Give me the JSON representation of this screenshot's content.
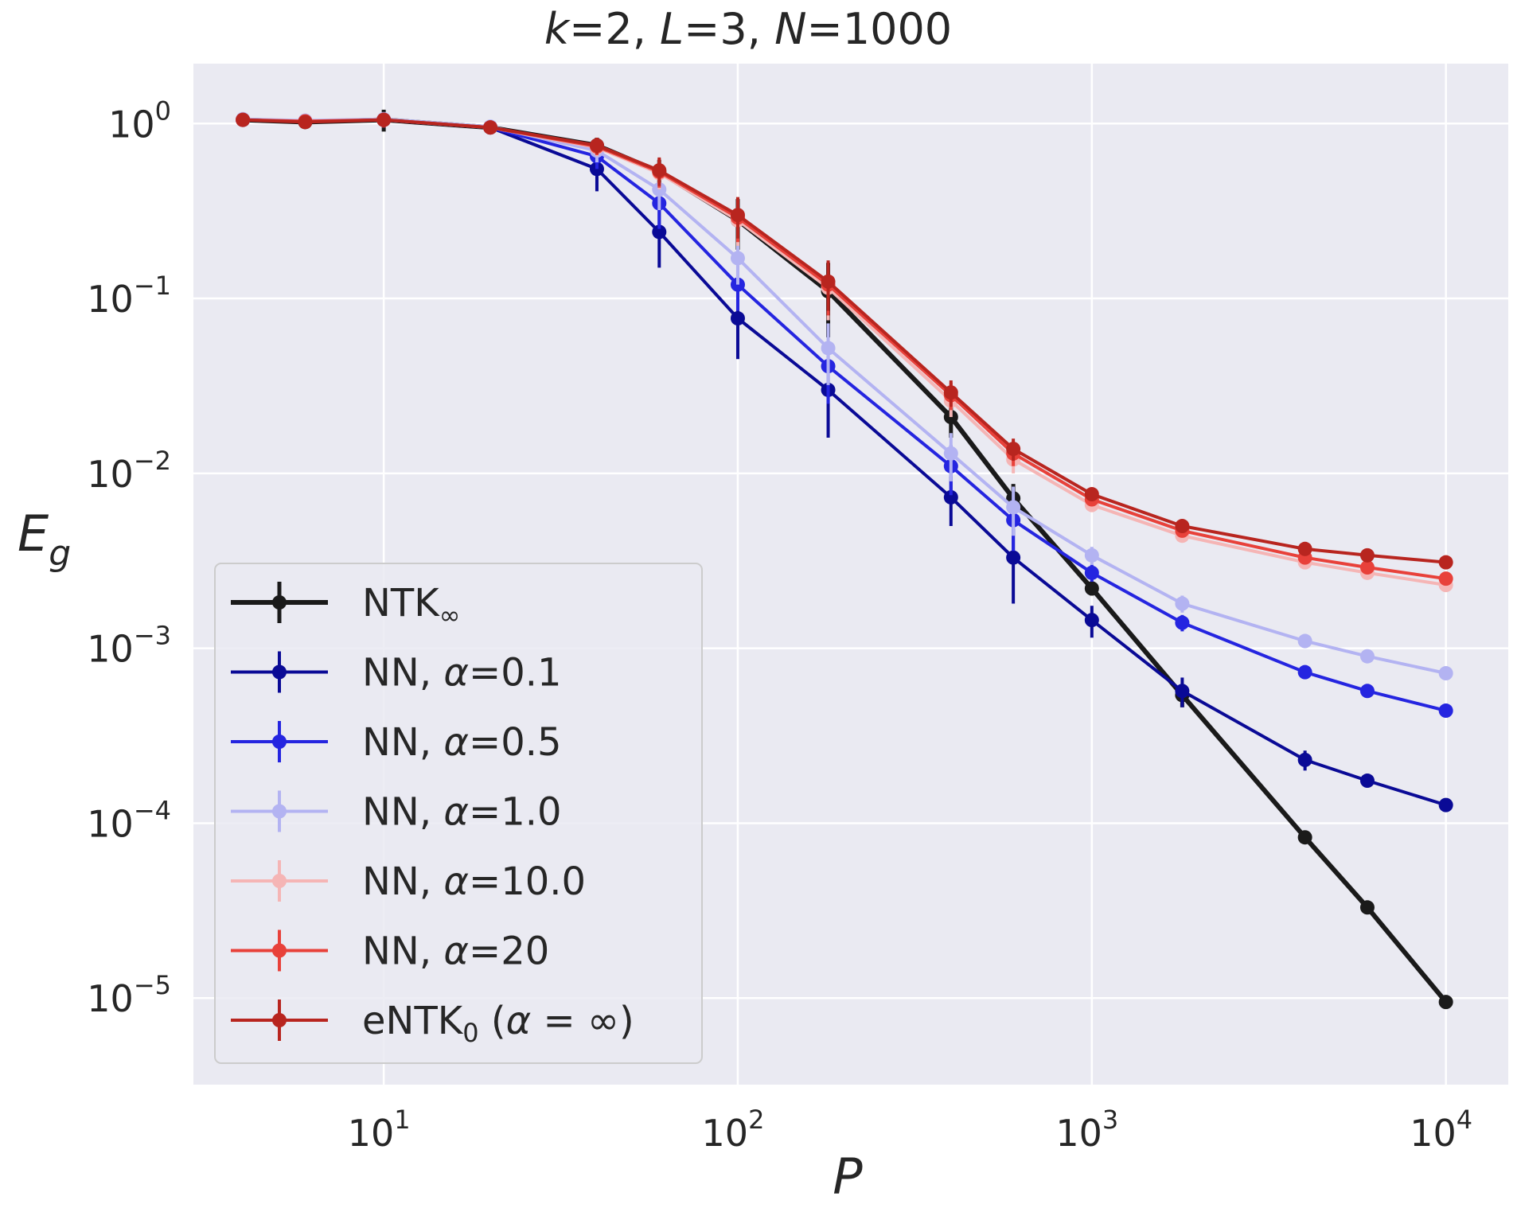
{
  "chart_data": {
    "type": "line",
    "title": "k=2, L=3, N=1000",
    "xlabel": "P",
    "ylabel": "E_g",
    "xscale": "log",
    "yscale": "log",
    "xlim": [
      2.9,
      15000
    ],
    "ylim": [
      3.2e-06,
      2.2
    ],
    "grid": true,
    "legend_position": "lower-left",
    "background": "#eaeaf2",
    "x_ticks": [
      {
        "value": 10,
        "base": "10",
        "exp": "1"
      },
      {
        "value": 100,
        "base": "10",
        "exp": "2"
      },
      {
        "value": 1000,
        "base": "10",
        "exp": "3"
      },
      {
        "value": 10000,
        "base": "10",
        "exp": "4"
      }
    ],
    "y_ticks": [
      {
        "value": 1,
        "base": "10",
        "exp": "0"
      },
      {
        "value": 0.1,
        "base": "10",
        "exp": "−1"
      },
      {
        "value": 0.01,
        "base": "10",
        "exp": "−2"
      },
      {
        "value": 0.001,
        "base": "10",
        "exp": "−3"
      },
      {
        "value": 0.0001,
        "base": "10",
        "exp": "−4"
      },
      {
        "value": 1e-05,
        "base": "10",
        "exp": "−5"
      }
    ],
    "x": [
      4,
      6,
      10,
      20,
      40,
      60,
      100,
      180,
      400,
      600,
      1000,
      1800,
      4000,
      6000,
      10000
    ],
    "series": [
      {
        "name": "NTK∞",
        "color": "#1a1a1a",
        "stroke_width": 6,
        "marker_radius": 9,
        "error_width": 5,
        "values": [
          1.05,
          1.02,
          1.05,
          0.95,
          0.75,
          0.53,
          0.28,
          0.11,
          0.021,
          0.0072,
          0.0022,
          0.00054,
          8.3e-05,
          3.3e-05,
          9.5e-06
        ],
        "errors": [
          0.08,
          0.05,
          0.15,
          0.06,
          0.08,
          0.09,
          0.09,
          0.05,
          0.005,
          0.0015,
          0.0002,
          8e-05,
          4e-06,
          2e-06,
          5e-07
        ]
      },
      {
        "name": "NN, α=0.1",
        "color": "#0a0a96",
        "stroke_width": 4,
        "marker_radius": 9,
        "error_width": 4,
        "values": [
          1.05,
          1.03,
          1.05,
          0.95,
          0.55,
          0.24,
          0.077,
          0.03,
          0.0073,
          0.0033,
          0.00145,
          0.00057,
          0.00023,
          0.000175,
          0.000127
        ],
        "errors": [
          0.05,
          0.05,
          0.1,
          0.05,
          0.14,
          0.09,
          0.032,
          0.014,
          0.0023,
          0.0015,
          0.0003,
          0.00011,
          3e-05,
          1e-05,
          6e-06
        ]
      },
      {
        "name": "NN, α=0.5",
        "color": "#2525e0",
        "stroke_width": 4,
        "marker_radius": 9,
        "error_width": 4,
        "values": [
          1.05,
          1.03,
          1.05,
          0.95,
          0.65,
          0.35,
          0.12,
          0.041,
          0.011,
          0.0054,
          0.0027,
          0.0014,
          0.00073,
          0.00057,
          0.00044
        ],
        "errors": [
          0.05,
          0.05,
          0.1,
          0.05,
          0.1,
          0.1,
          0.035,
          0.016,
          0.0035,
          0.0018,
          0.0003,
          0.00015,
          4e-05,
          3e-05,
          2e-05
        ]
      },
      {
        "name": "NN, α=1.0",
        "color": "#b3b3f2",
        "stroke_width": 4,
        "marker_radius": 9,
        "error_width": 4,
        "values": [
          1.06,
          1.04,
          1.06,
          0.96,
          0.7,
          0.42,
          0.17,
          0.052,
          0.013,
          0.0064,
          0.0034,
          0.0018,
          0.0011,
          0.0009,
          0.00072
        ],
        "errors": [
          0.05,
          0.05,
          0.1,
          0.05,
          0.1,
          0.1,
          0.05,
          0.02,
          0.004,
          0.002,
          0.0004,
          0.0002,
          5e-05,
          4e-05,
          3e-05
        ]
      },
      {
        "name": "NN, α=10.0",
        "color": "#f5b5b5",
        "stroke_width": 4,
        "marker_radius": 9,
        "error_width": 4,
        "values": [
          1.05,
          1.03,
          1.05,
          0.95,
          0.73,
          0.52,
          0.28,
          0.115,
          0.026,
          0.012,
          0.0066,
          0.0044,
          0.0031,
          0.0027,
          0.0023
        ],
        "errors": [
          0.05,
          0.05,
          0.1,
          0.05,
          0.08,
          0.1,
          0.08,
          0.04,
          0.005,
          0.002,
          0.0006,
          0.0003,
          0.0002,
          0.0002,
          0.0001
        ]
      },
      {
        "name": "NN, α=20",
        "color": "#e8413a",
        "stroke_width": 4,
        "marker_radius": 9,
        "error_width": 4,
        "values": [
          1.05,
          1.03,
          1.05,
          0.95,
          0.74,
          0.53,
          0.29,
          0.12,
          0.028,
          0.013,
          0.0071,
          0.0047,
          0.0033,
          0.0029,
          0.0025
        ],
        "errors": [
          0.05,
          0.05,
          0.1,
          0.05,
          0.08,
          0.1,
          0.08,
          0.04,
          0.005,
          0.002,
          0.0006,
          0.0003,
          0.0002,
          0.0002,
          0.0001
        ]
      },
      {
        "name": "eNTK₀ (α = ∞)",
        "color": "#b8251f",
        "stroke_width": 4,
        "marker_radius": 9,
        "error_width": 4,
        "values": [
          1.05,
          1.02,
          1.05,
          0.95,
          0.75,
          0.54,
          0.3,
          0.125,
          0.029,
          0.0138,
          0.0076,
          0.005,
          0.0037,
          0.0034,
          0.0031
        ],
        "errors": [
          0.05,
          0.05,
          0.1,
          0.05,
          0.08,
          0.1,
          0.08,
          0.04,
          0.005,
          0.002,
          0.0006,
          0.0003,
          0.0002,
          0.0002,
          0.0001
        ]
      }
    ],
    "legend_labels": [
      {
        "prefix": "NTK",
        "sub": "∞",
        "suffix": ""
      },
      {
        "prefix": "NN, ",
        "greek": "α",
        "suffix": "=0.1"
      },
      {
        "prefix": "NN, ",
        "greek": "α",
        "suffix": "=0.5"
      },
      {
        "prefix": "NN, ",
        "greek": "α",
        "suffix": "=1.0"
      },
      {
        "prefix": "NN, ",
        "greek": "α",
        "suffix": "=10.0"
      },
      {
        "prefix": "NN, ",
        "greek": "α",
        "suffix": "=20"
      },
      {
        "prefix": "eNTK",
        "sub": "0",
        "suffix": " (",
        "greek": "α",
        "tail": " = ∞)"
      }
    ]
  }
}
